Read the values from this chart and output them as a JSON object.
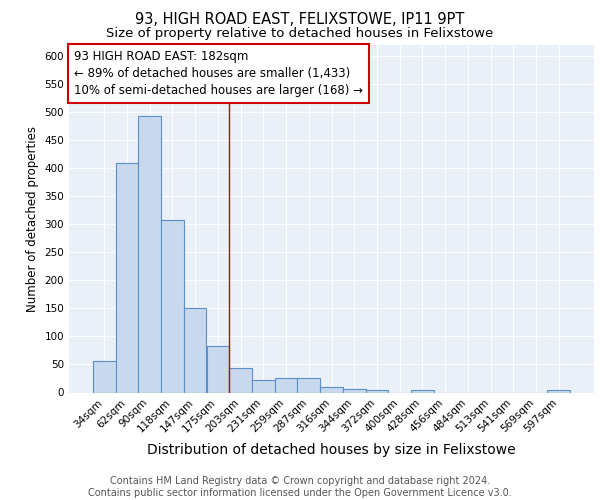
{
  "title1": "93, HIGH ROAD EAST, FELIXSTOWE, IP11 9PT",
  "title2": "Size of property relative to detached houses in Felixstowe",
  "xlabel": "Distribution of detached houses by size in Felixstowe",
  "ylabel": "Number of detached properties",
  "bin_labels": [
    "34sqm",
    "62sqm",
    "90sqm",
    "118sqm",
    "147sqm",
    "175sqm",
    "203sqm",
    "231sqm",
    "259sqm",
    "287sqm",
    "316sqm",
    "344sqm",
    "372sqm",
    "400sqm",
    "428sqm",
    "456sqm",
    "484sqm",
    "513sqm",
    "541sqm",
    "569sqm",
    "597sqm"
  ],
  "bar_heights": [
    57,
    410,
    493,
    307,
    150,
    83,
    44,
    22,
    25,
    25,
    10,
    7,
    5,
    0,
    5,
    0,
    0,
    0,
    0,
    0,
    5
  ],
  "bar_color": "#c8d9ee",
  "bar_edge_color": "#5b8fc9",
  "bar_width": 1.0,
  "red_line_x": 5.5,
  "annotation_text": "93 HIGH ROAD EAST: 182sqm\n← 89% of detached houses are smaller (1,433)\n10% of semi-detached houses are larger (168) →",
  "annotation_box_color": "white",
  "annotation_box_edge_color": "#cc0000",
  "footer_text": "Contains HM Land Registry data © Crown copyright and database right 2024.\nContains public sector information licensed under the Open Government Licence v3.0.",
  "ylim": [
    0,
    620
  ],
  "yticks": [
    0,
    50,
    100,
    150,
    200,
    250,
    300,
    350,
    400,
    450,
    500,
    550,
    600
  ],
  "background_color": "#eaf0f8",
  "grid_color": "#ffffff",
  "title1_fontsize": 10.5,
  "title2_fontsize": 9.5,
  "xlabel_fontsize": 10,
  "ylabel_fontsize": 8.5,
  "tick_fontsize": 7.5,
  "annotation_fontsize": 8.5,
  "footer_fontsize": 7
}
